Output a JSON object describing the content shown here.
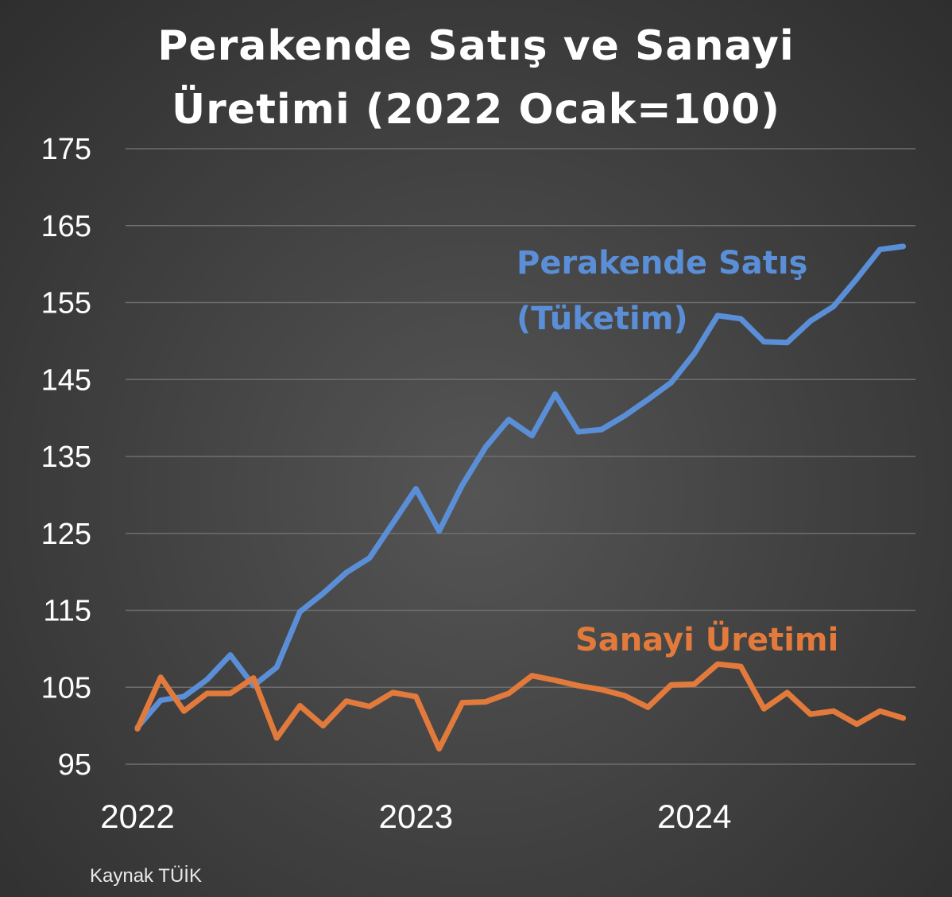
{
  "title_line1": "Perakende Satış ve Sanayi",
  "title_line2": "Üretimi (2022 Ocak=100)",
  "source": "Kaynak TÜİK",
  "colors": {
    "retail": "#5a8fd8",
    "industry": "#e27a3c",
    "grid": "#6e6e6e",
    "text": "#ffffff"
  },
  "chart_data": {
    "type": "line",
    "ylim": [
      95,
      175
    ],
    "yticks": [
      95,
      105,
      115,
      125,
      135,
      145,
      155,
      165,
      175
    ],
    "xticks": [
      "2022",
      "2023",
      "2024"
    ],
    "x_start": "2022-01",
    "x_end": "2024-12",
    "grid": true,
    "series": [
      {
        "name": "Perakende Satış",
        "name_line2": "(Tüketim)",
        "values": [
          99.8,
          103.3,
          103.8,
          106.0,
          109.2,
          105.2,
          107.6,
          114.8,
          117.2,
          119.9,
          121.8,
          126.3,
          130.8,
          125.3,
          131.3,
          136.2,
          139.8,
          137.7,
          143.1,
          138.2,
          138.5,
          140.3,
          142.4,
          144.6,
          148.4,
          153.3,
          152.9,
          149.9,
          149.8,
          152.6,
          154.5,
          158.1,
          161.9,
          162.3
        ]
      },
      {
        "name": "Sanayi Üretimi",
        "values": [
          99.6,
          106.3,
          101.9,
          104.2,
          104.2,
          106.2,
          98.4,
          102.6,
          100.0,
          103.2,
          102.5,
          104.3,
          103.8,
          97.0,
          103.0,
          103.1,
          104.2,
          106.5,
          105.9,
          105.2,
          104.7,
          103.9,
          102.4,
          105.3,
          105.4,
          108.0,
          107.7,
          102.2,
          104.3,
          101.5,
          101.9,
          100.2,
          101.9,
          101.0
        ]
      }
    ]
  }
}
